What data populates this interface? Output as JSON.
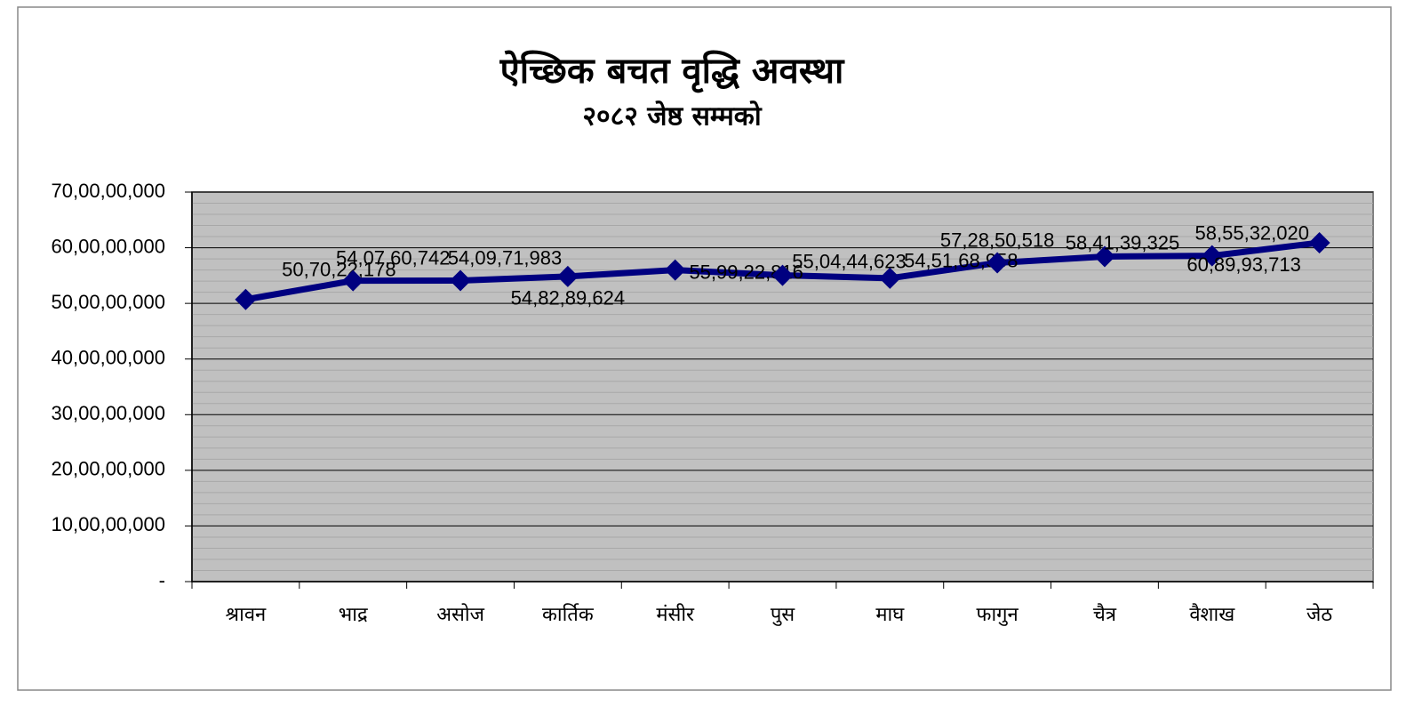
{
  "chart_data": {
    "type": "line",
    "title": "ऐच्छिक बचत वृद्धि अवस्था",
    "subtitle": "२०८२ जेष्ठ सम्मको",
    "categories": [
      "श्रावन",
      "भाद्र",
      "असोज",
      "कार्तिक",
      "मंसीर",
      "पुस",
      "माघ",
      "फागुन",
      "चैत्र",
      "वैशाख",
      "जेठ"
    ],
    "series": [
      {
        "name": "ऐच्छिक बचत",
        "color": "#000080",
        "values": [
          507022178,
          540760742,
          540971983,
          548289624,
          559922816,
          550444623,
          545168958,
          572850518,
          584139325,
          585532020,
          608993713
        ],
        "value_labels": [
          "50,70,22,178",
          "54,07,60,742",
          "54,09,71,983",
          "54,82,89,624",
          "55,99,22,816",
          "55,04,44,623",
          "54,51,68,958",
          "57,28,50,518",
          "58,41,39,325",
          "58,55,32,020",
          "60,89,93,713"
        ]
      }
    ],
    "ylim": [
      0,
      700000000
    ],
    "yticks": [
      {
        "value": 0,
        "label": "-"
      },
      {
        "value": 100000000,
        "label": "10,00,00,000"
      },
      {
        "value": 200000000,
        "label": "20,00,00,000"
      },
      {
        "value": 300000000,
        "label": "30,00,00,000"
      },
      {
        "value": 400000000,
        "label": "40,00,00,000"
      },
      {
        "value": 500000000,
        "label": "50,00,00,000"
      },
      {
        "value": 600000000,
        "label": "60,00,00,000"
      },
      {
        "value": 700000000,
        "label": "70,00,00,000"
      }
    ],
    "grid": true
  }
}
